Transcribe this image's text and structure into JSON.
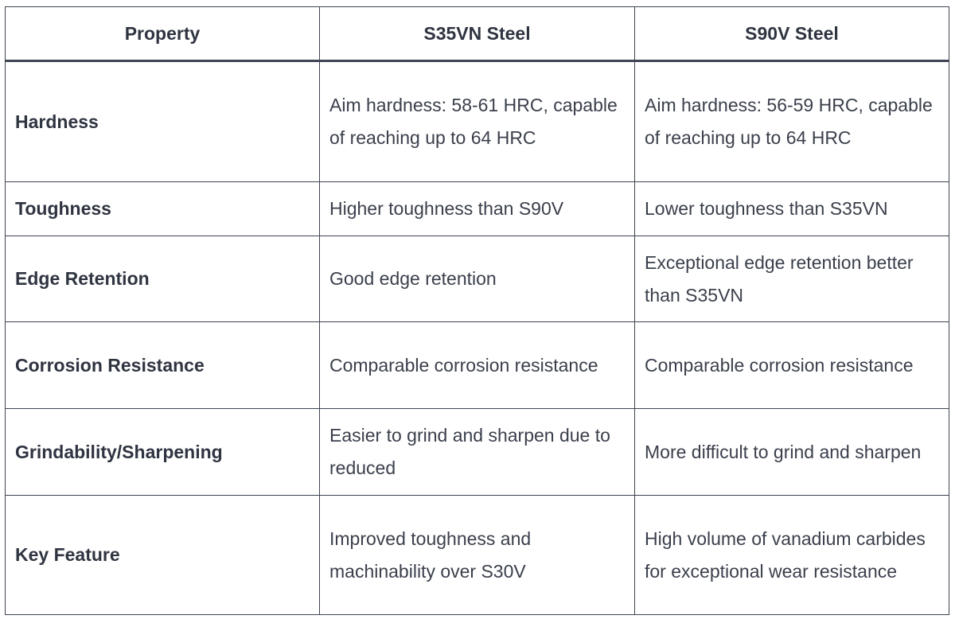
{
  "table": {
    "headers": [
      "Property",
      "S35VN Steel",
      "S90V Steel"
    ],
    "rows": [
      {
        "property": "Hardness",
        "s35vn": "Aim hardness: 58-61 HRC, capable of reaching up to 64 HRC",
        "s90v": "Aim hardness: 56-59 HRC, capable of reaching up to 64 HRC"
      },
      {
        "property": "Toughness",
        "s35vn": "Higher toughness than S90V",
        "s90v": "Lower toughness than S35VN"
      },
      {
        "property": "Edge Retention",
        "s35vn": "Good edge retention",
        "s90v": "Exceptional edge retention better than S35VN"
      },
      {
        "property": "Corrosion Resistance",
        "s35vn": "Comparable corrosion resistance",
        "s90v": "Comparable corrosion resistance"
      },
      {
        "property": "Grindability/Sharpening",
        "s35vn": "Easier to grind and sharpen due to reduced",
        "s90v": "More difficult to grind and sharpen"
      },
      {
        "property": "Key Feature",
        "s35vn": "Improved toughness and machinability over S30V",
        "s90v": "High volume of vanadium carbides for exceptional wear resistance"
      }
    ]
  }
}
